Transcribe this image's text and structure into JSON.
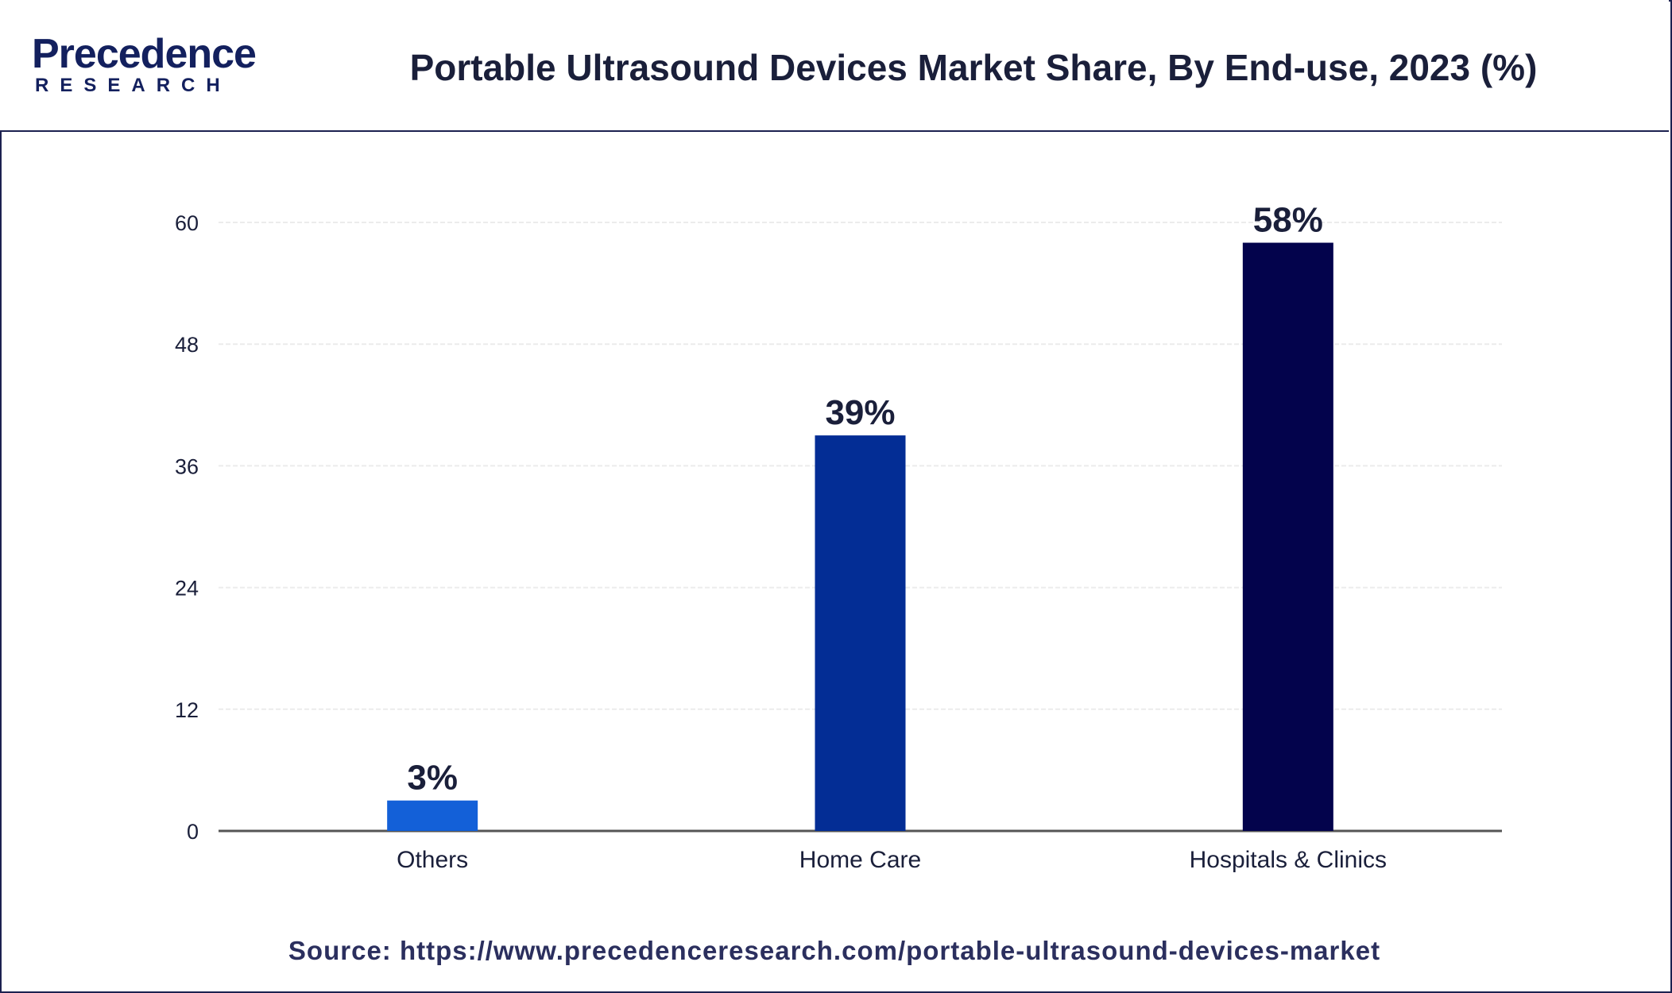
{
  "header": {
    "logo_main": "Precedence",
    "logo_sub": "RESEARCH",
    "title": "Portable Ultrasound Devices Market Share, By End-use, 2023 (%)"
  },
  "footer": {
    "source": "Source: https://www.precedenceresearch.com/portable-ultrasound-devices-market"
  },
  "colors": {
    "border": "#1c2150",
    "bar_others": "#1360d8",
    "bar_home_care": "#032d95",
    "bar_hospitals": "#03034c"
  },
  "chart_data": {
    "type": "bar",
    "title": "Portable Ultrasound Devices Market Share, By End-use, 2023 (%)",
    "categories": [
      "Others",
      "Home Care",
      "Hospitals & Clinics"
    ],
    "values": [
      3,
      39,
      58
    ],
    "data_labels": [
      "3%",
      "39%",
      "58%"
    ],
    "bar_colors": [
      "#1360d8",
      "#032d95",
      "#03034c"
    ],
    "ylim": [
      0,
      60
    ],
    "yticks": [
      0,
      12,
      24,
      36,
      48,
      60
    ],
    "xlabel": "",
    "ylabel": "",
    "grid": true,
    "legend": "none"
  }
}
